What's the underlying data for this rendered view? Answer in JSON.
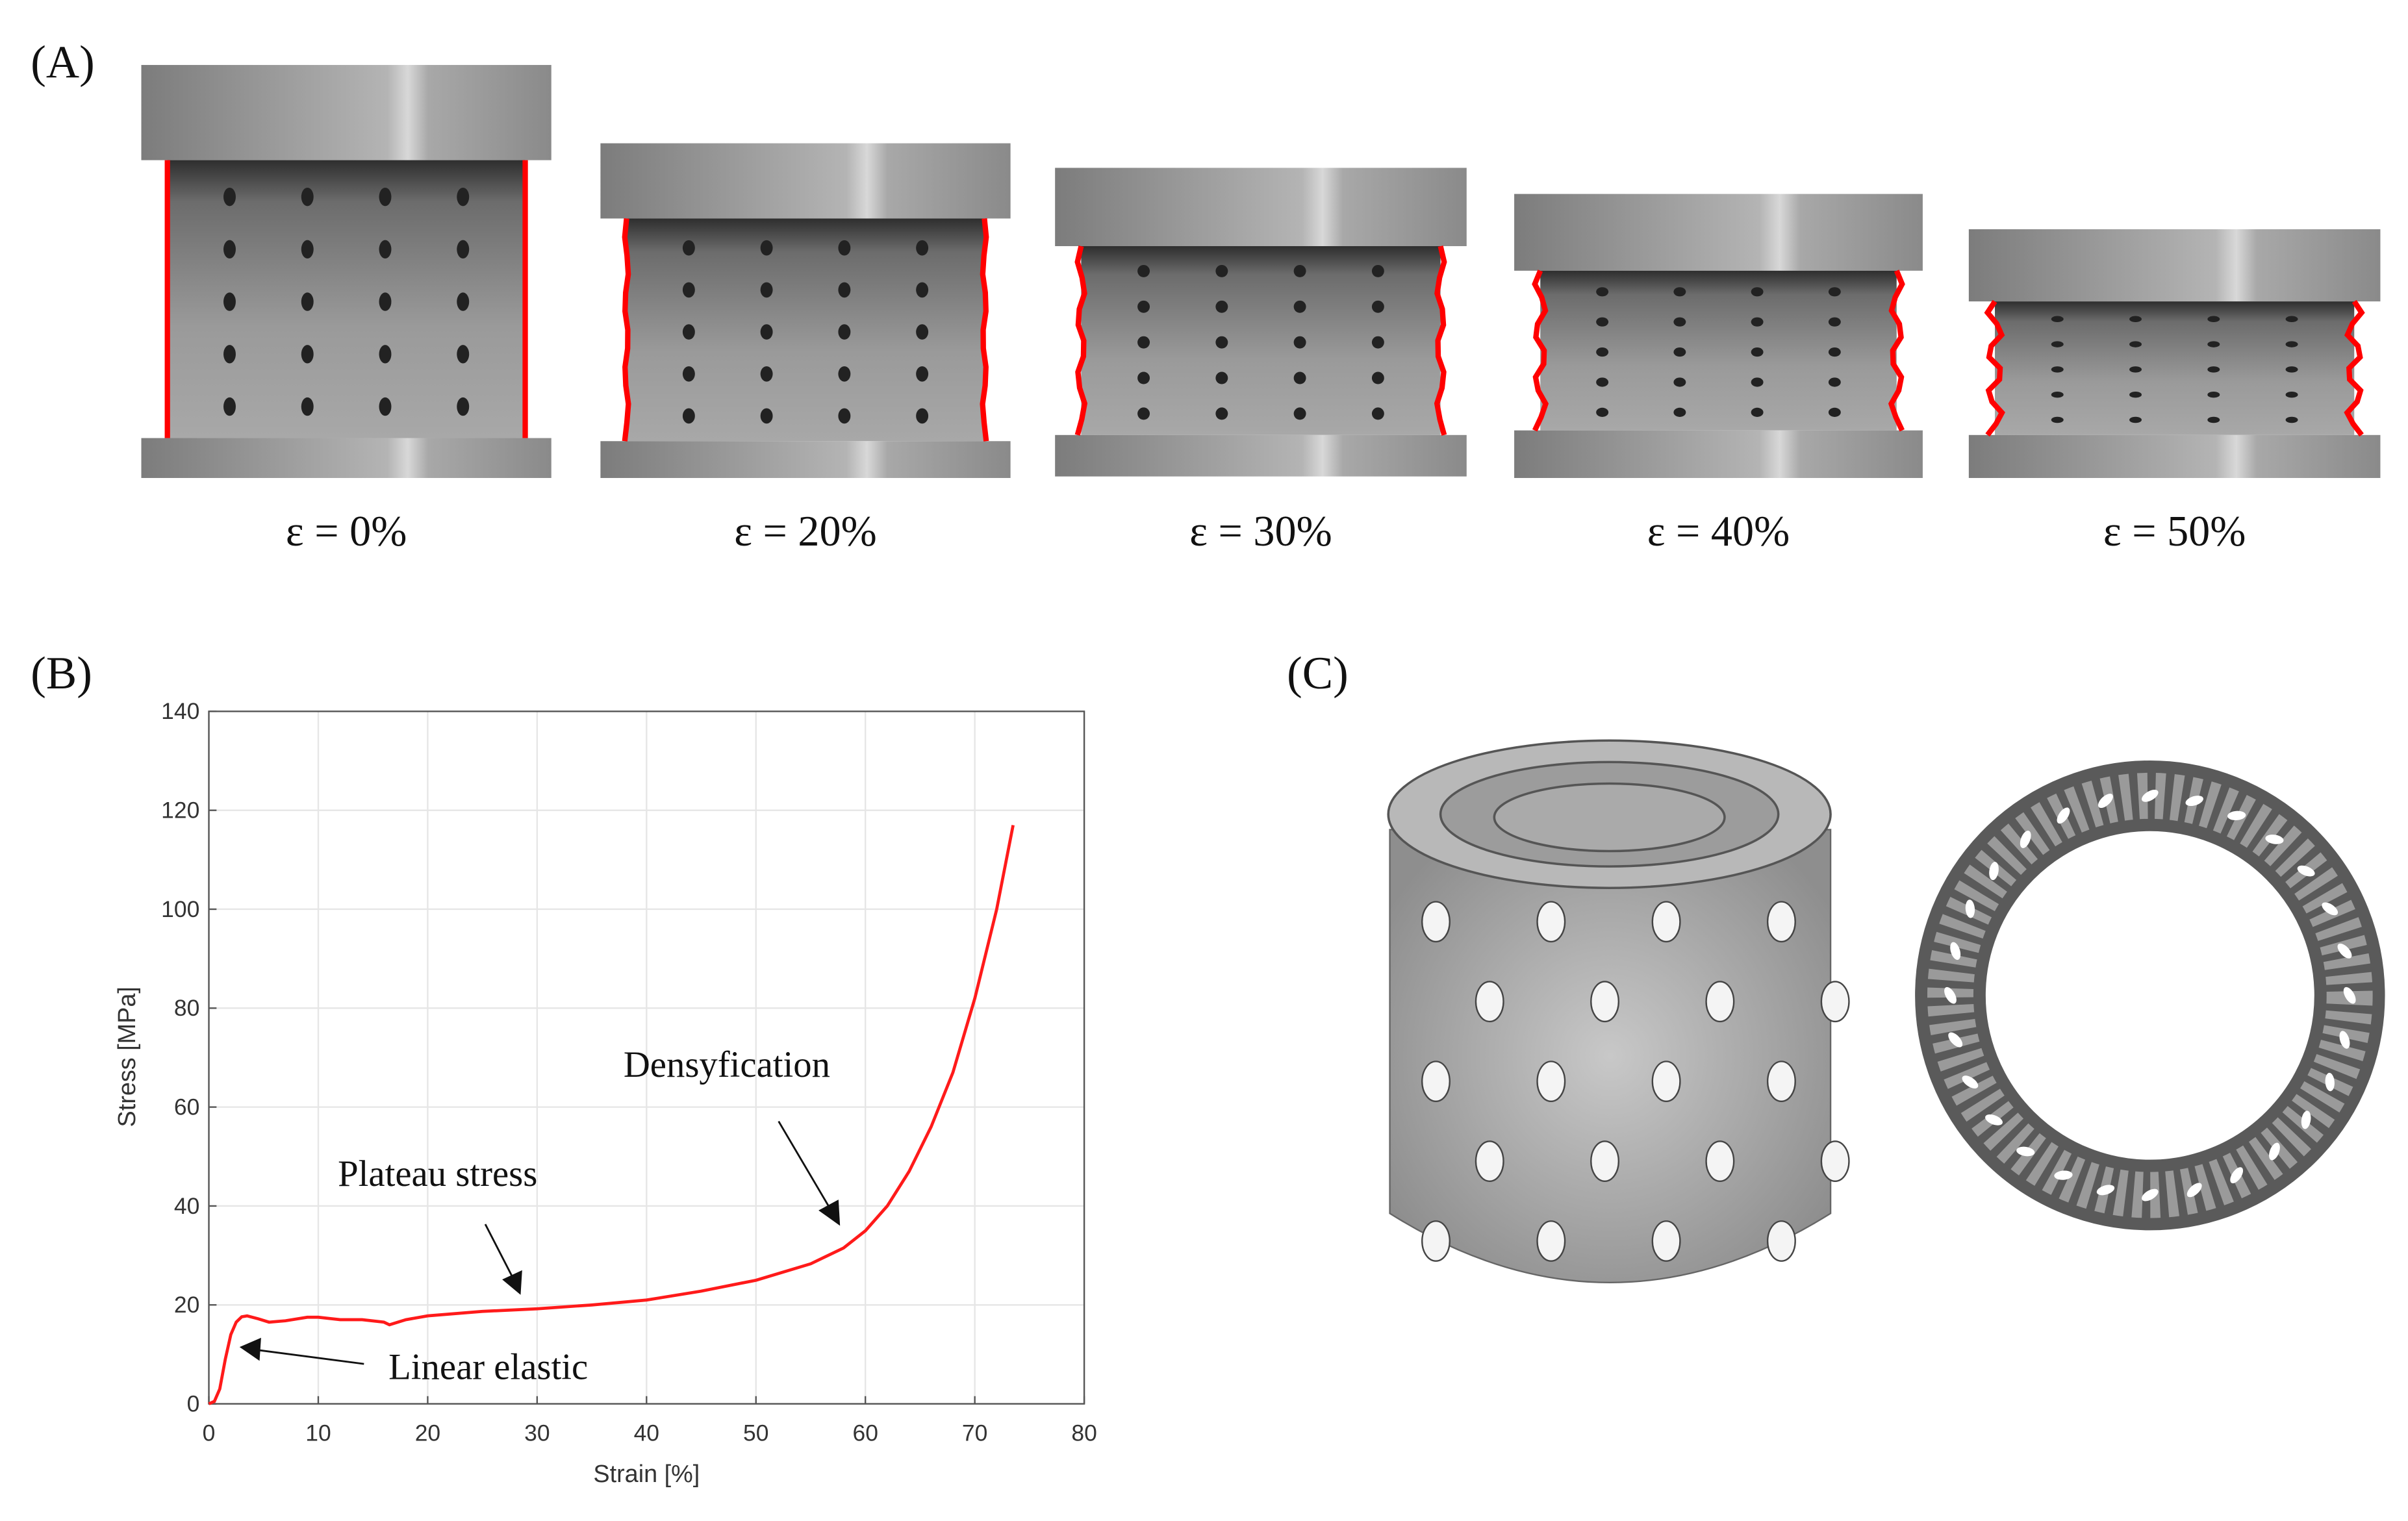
{
  "panels": {
    "a_label": "(A)",
    "b_label": "(B)",
    "c_label": "(C)"
  },
  "compression_frames": [
    {
      "label": "ε = 0%",
      "strain_percent": 0
    },
    {
      "label": "ε = 20%",
      "strain_percent": 20
    },
    {
      "label": "ε = 30%",
      "strain_percent": 30
    },
    {
      "label": "ε = 40%",
      "strain_percent": 40
    },
    {
      "label": "ε = 50%",
      "strain_percent": 50
    }
  ],
  "colors": {
    "curve": "#ff1a1a",
    "edge_outline": "#ff0000",
    "grid": "#e6e6e6",
    "axis": "#555555"
  },
  "chart_data": {
    "type": "line",
    "title": "",
    "xlabel": "Strain [%]",
    "ylabel": "Stress [MPa]",
    "xlim": [
      0,
      80
    ],
    "ylim": [
      0,
      140
    ],
    "xticks": [
      0,
      10,
      20,
      30,
      40,
      50,
      60,
      70,
      80
    ],
    "yticks": [
      0,
      20,
      40,
      60,
      80,
      100,
      120,
      140
    ],
    "grid": true,
    "series": [
      {
        "x": [
          0,
          0.5,
          1,
          1.5,
          2,
          2.5,
          3,
          3.5,
          4.5,
          5.5,
          7,
          9,
          10,
          12,
          14,
          16,
          16.5,
          18,
          20,
          25,
          30,
          35,
          40,
          45,
          50,
          55,
          58,
          60,
          62,
          64,
          66,
          68,
          70,
          72,
          73.5
        ],
        "y": [
          0,
          0.5,
          3,
          9,
          14,
          16.5,
          17.6,
          17.8,
          17.2,
          16.5,
          16.8,
          17.5,
          17.5,
          17,
          17,
          16.5,
          16,
          17,
          17.8,
          18.7,
          19.2,
          20,
          21,
          22.8,
          25,
          28.3,
          31.5,
          35,
          40,
          47,
          56,
          67,
          82,
          100,
          117
        ]
      }
    ],
    "annotations": [
      {
        "text": "Densyfication",
        "arrow_to": [
          58,
          36
        ]
      },
      {
        "text": "Plateau stress",
        "arrow_to": [
          28.5,
          22
        ]
      },
      {
        "text": "Linear elastic",
        "arrow_to": [
          2.8,
          11.5
        ]
      }
    ]
  }
}
